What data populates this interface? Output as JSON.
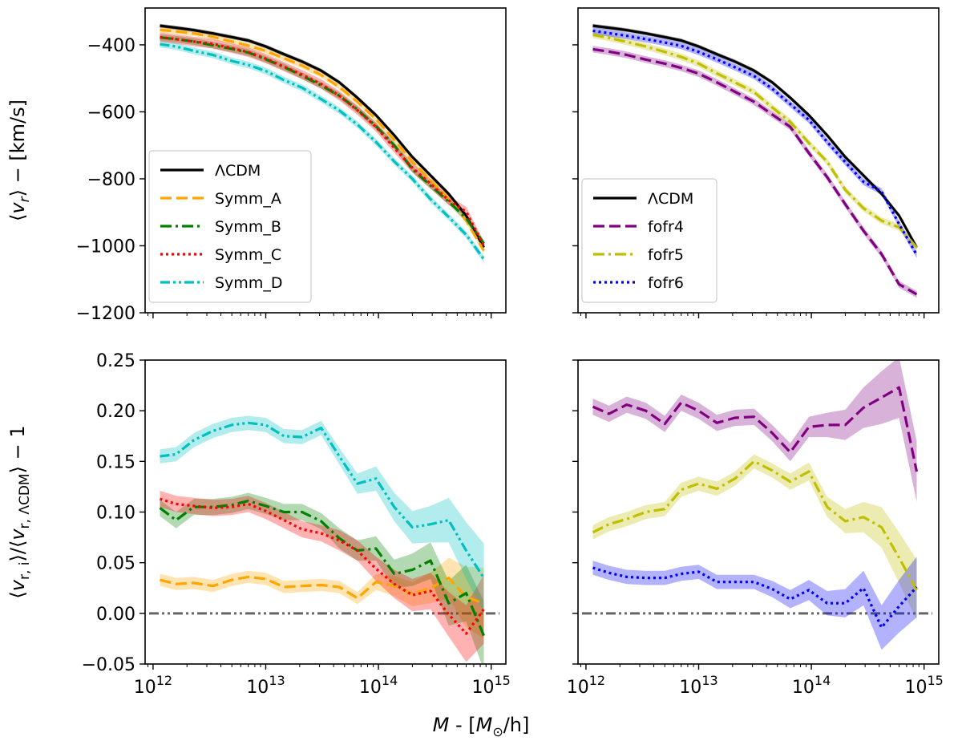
{
  "figure": {
    "xlabel": "M - [M☉/h]",
    "xlabel_parts": {
      "var": "M",
      "sep": " - [",
      "unit_main": "M",
      "unit_sub": "⊙",
      "unit_end": "/h]"
    }
  },
  "chart_data": [
    {
      "id": "top_left",
      "type": "line",
      "xscale": "log",
      "xlim": [
        850000000000.0,
        1350000000000000.0
      ],
      "ylim": [
        -1200,
        -290
      ],
      "xticks": [
        {
          "v": 1000000000000.0,
          "base": "10",
          "exp": "12"
        },
        {
          "v": 10000000000000.0,
          "base": "10",
          "exp": "13"
        },
        {
          "v": 100000000000000.0,
          "base": "10",
          "exp": "14"
        },
        {
          "v": 1000000000000000.0,
          "base": "10",
          "exp": "15"
        }
      ],
      "show_xticklabels": false,
      "yticks": [
        {
          "v": -400,
          "label": "−400"
        },
        {
          "v": -600,
          "label": "−600"
        },
        {
          "v": -800,
          "label": "−800"
        },
        {
          "v": -1000,
          "label": "−1000"
        },
        {
          "v": -1200,
          "label": "−1200"
        }
      ],
      "show_yticklabels": true,
      "ylabel": "⟨v_r⟩ − [km/s]",
      "legend": {
        "position": "lower-left"
      },
      "x": [
        1150000000000.0,
        1600000000000.0,
        2300000000000.0,
        3400000000000.0,
        5000000000000.0,
        7000000000000.0,
        10000000000000.0,
        14500000000000.0,
        21000000000000.0,
        31000000000000.0,
        45000000000000.0,
        65000000000000.0,
        95000000000000.0,
        138000000000000.0,
        200000000000000.0,
        290000000000000.0,
        420000000000000.0,
        600000000000000.0,
        860000000000000.0
      ],
      "series": [
        {
          "name": "ΛCDM",
          "color": "#000000",
          "dash": "solid",
          "values": [
            -343,
            -349,
            -356,
            -366,
            -377,
            -387,
            -405,
            -428,
            -450,
            -477,
            -512,
            -558,
            -610,
            -670,
            -735,
            -790,
            -845,
            -910,
            -1005
          ],
          "band": 6
        },
        {
          "name": "Symm_A",
          "color": "#ffa500",
          "dash": "dashed",
          "values": [
            -355,
            -360,
            -366,
            -376,
            -390,
            -402,
            -418,
            -440,
            -462,
            -490,
            -526,
            -570,
            -622,
            -684,
            -749,
            -804,
            -860,
            -925,
            -1015
          ],
          "band": 8
        },
        {
          "name": "Symm_B",
          "color": "#008000",
          "dash": "dashdot",
          "values": [
            -378,
            -383,
            -390,
            -401,
            -412,
            -423,
            -443,
            -466,
            -492,
            -521,
            -552,
            -593,
            -643,
            -700,
            -771,
            -820,
            -868,
            -918,
            -993
          ],
          "band": 10
        },
        {
          "name": "Symm_C",
          "color": "#ff0000",
          "dash": "dotted",
          "values": [
            -377,
            -383,
            -390,
            -397,
            -410,
            -422,
            -441,
            -465,
            -489,
            -517,
            -552,
            -595,
            -645,
            -708,
            -767,
            -815,
            -864,
            -898,
            -1000
          ],
          "band": 14
        },
        {
          "name": "Symm_D",
          "color": "#00bfbf",
          "dash": "dashdotdot",
          "values": [
            -398,
            -405,
            -418,
            -430,
            -448,
            -460,
            -478,
            -505,
            -528,
            -562,
            -596,
            -638,
            -690,
            -748,
            -800,
            -861,
            -914,
            -967,
            -1040
          ],
          "band": 10
        }
      ]
    },
    {
      "id": "top_right",
      "type": "line",
      "xscale": "log",
      "xlim": [
        850000000000.0,
        1350000000000000.0
      ],
      "ylim": [
        -1200,
        -290
      ],
      "xticks": [
        {
          "v": 1000000000000.0,
          "base": "10",
          "exp": "12"
        },
        {
          "v": 10000000000000.0,
          "base": "10",
          "exp": "13"
        },
        {
          "v": 100000000000000.0,
          "base": "10",
          "exp": "14"
        },
        {
          "v": 1000000000000000.0,
          "base": "10",
          "exp": "15"
        }
      ],
      "show_xticklabels": false,
      "yticks": [
        {
          "v": -400,
          "label": "−400"
        },
        {
          "v": -600,
          "label": "−600"
        },
        {
          "v": -800,
          "label": "−800"
        },
        {
          "v": -1000,
          "label": "−1000"
        },
        {
          "v": -1200,
          "label": "−1200"
        }
      ],
      "show_yticklabels": false,
      "ylabel": "",
      "legend": {
        "position": "lower-left"
      },
      "x": [
        1150000000000.0,
        1600000000000.0,
        2300000000000.0,
        3400000000000.0,
        5000000000000.0,
        7000000000000.0,
        10000000000000.0,
        14500000000000.0,
        21000000000000.0,
        31000000000000.0,
        45000000000000.0,
        65000000000000.0,
        95000000000000.0,
        138000000000000.0,
        200000000000000.0,
        290000000000000.0,
        420000000000000.0,
        600000000000000.0,
        860000000000000.0
      ],
      "series": [
        {
          "name": "ΛCDM",
          "color": "#000000",
          "dash": "solid",
          "values": [
            -343,
            -349,
            -356,
            -366,
            -377,
            -387,
            -405,
            -428,
            -450,
            -477,
            -512,
            -558,
            -610,
            -670,
            -735,
            -790,
            -845,
            -910,
            -1005
          ],
          "band": 6
        },
        {
          "name": "fofr4",
          "color": "#800080",
          "dash": "dashed",
          "values": [
            -413,
            -420,
            -430,
            -444,
            -456,
            -469,
            -486,
            -512,
            -540,
            -570,
            -608,
            -645,
            -723,
            -795,
            -876,
            -955,
            -1025,
            -1115,
            -1145
          ],
          "band": 10
        },
        {
          "name": "fofr5",
          "color": "#bfbf00",
          "dash": "dashdot",
          "values": [
            -370,
            -379,
            -391,
            -405,
            -421,
            -436,
            -456,
            -485,
            -512,
            -541,
            -587,
            -630,
            -693,
            -749,
            -833,
            -888,
            -925,
            -945,
            -1005
          ],
          "band": 10
        },
        {
          "name": "fofr6",
          "color": "#0000ff",
          "dash": "dotted",
          "values": [
            -358,
            -365,
            -373,
            -383,
            -393,
            -403,
            -421,
            -443,
            -467,
            -493,
            -531,
            -577,
            -624,
            -690,
            -750,
            -809,
            -838,
            -935,
            -1027
          ],
          "band": 10
        }
      ]
    },
    {
      "id": "bottom_left",
      "type": "line",
      "xscale": "log",
      "xlim": [
        850000000000.0,
        1350000000000000.0
      ],
      "ylim": [
        -0.05,
        0.25
      ],
      "xticks": [
        {
          "v": 1000000000000.0,
          "base": "10",
          "exp": "12"
        },
        {
          "v": 10000000000000.0,
          "base": "10",
          "exp": "13"
        },
        {
          "v": 100000000000000.0,
          "base": "10",
          "exp": "14"
        },
        {
          "v": 1000000000000000.0,
          "base": "10",
          "exp": "15"
        }
      ],
      "show_xticklabels": true,
      "yticks": [
        {
          "v": -0.05,
          "label": "−0.05"
        },
        {
          "v": 0,
          "label": "0.00"
        },
        {
          "v": 0.05,
          "label": "0.05"
        },
        {
          "v": 0.1,
          "label": "0.10"
        },
        {
          "v": 0.15,
          "label": "0.15"
        },
        {
          "v": 0.2,
          "label": "0.20"
        },
        {
          "v": 0.25,
          "label": "0.25"
        }
      ],
      "show_yticklabels": true,
      "ylabel": "⟨v_{r,i}⟩/⟨v_{r,ΛCDM}⟩ − 1",
      "reference": {
        "y": 0,
        "color": "#666666"
      },
      "x": [
        1150000000000.0,
        1600000000000.0,
        2300000000000.0,
        3400000000000.0,
        5000000000000.0,
        7000000000000.0,
        10000000000000.0,
        14500000000000.0,
        21000000000000.0,
        31000000000000.0,
        45000000000000.0,
        65000000000000.0,
        95000000000000.0,
        138000000000000.0,
        200000000000000.0,
        290000000000000.0,
        420000000000000.0,
        600000000000000.0,
        860000000000000.0
      ],
      "series": [
        {
          "name": "Symm_A",
          "color": "#ffa500",
          "dash": "dashed",
          "values": [
            0.033,
            0.029,
            0.03,
            0.027,
            0.033,
            0.036,
            0.034,
            0.026,
            0.027,
            0.028,
            0.026,
            0.015,
            0.031,
            0.027,
            0.019,
            0.025,
            0.035,
            0.016,
            0.01
          ],
          "band": [
            0.006,
            0.006,
            0.006,
            0.006,
            0.006,
            0.006,
            0.006,
            0.006,
            0.006,
            0.006,
            0.006,
            0.006,
            0.008,
            0.01,
            0.012,
            0.015,
            0.02,
            0.03,
            0.035
          ]
        },
        {
          "name": "Symm_B",
          "color": "#008000",
          "dash": "dashdot",
          "values": [
            0.104,
            0.092,
            0.105,
            0.105,
            0.107,
            0.111,
            0.106,
            0.1,
            0.1,
            0.091,
            0.074,
            0.062,
            0.064,
            0.039,
            0.043,
            0.052,
            0.01,
            0.02,
            -0.022
          ],
          "band": [
            0.008,
            0.008,
            0.008,
            0.008,
            0.008,
            0.008,
            0.008,
            0.008,
            0.008,
            0.008,
            0.01,
            0.01,
            0.012,
            0.014,
            0.016,
            0.018,
            0.022,
            0.028,
            0.034
          ]
        },
        {
          "name": "Symm_C",
          "color": "#ff0000",
          "dash": "dotted",
          "values": [
            0.113,
            0.108,
            0.106,
            0.104,
            0.105,
            0.108,
            0.101,
            0.092,
            0.083,
            0.079,
            0.072,
            0.062,
            0.044,
            0.029,
            0.018,
            0.022,
            -0.001,
            -0.02,
            0.004
          ],
          "band": [
            0.008,
            0.008,
            0.008,
            0.008,
            0.008,
            0.008,
            0.008,
            0.008,
            0.008,
            0.008,
            0.01,
            0.01,
            0.012,
            0.014,
            0.016,
            0.018,
            0.022,
            0.028,
            0.034
          ]
        },
        {
          "name": "Symm_D",
          "color": "#00bfbf",
          "dash": "dashdotdot",
          "values": [
            0.155,
            0.157,
            0.171,
            0.18,
            0.186,
            0.188,
            0.186,
            0.175,
            0.174,
            0.183,
            0.155,
            0.128,
            0.133,
            0.105,
            0.085,
            0.088,
            0.092,
            0.062,
            0.035
          ],
          "band": [
            0.007,
            0.007,
            0.007,
            0.007,
            0.007,
            0.007,
            0.007,
            0.007,
            0.007,
            0.007,
            0.008,
            0.01,
            0.012,
            0.014,
            0.016,
            0.018,
            0.022,
            0.028,
            0.034
          ]
        }
      ]
    },
    {
      "id": "bottom_right",
      "type": "line",
      "xscale": "log",
      "xlim": [
        850000000000.0,
        1350000000000000.0
      ],
      "ylim": [
        -0.05,
        0.25
      ],
      "xticks": [
        {
          "v": 1000000000000.0,
          "base": "10",
          "exp": "12"
        },
        {
          "v": 10000000000000.0,
          "base": "10",
          "exp": "13"
        },
        {
          "v": 100000000000000.0,
          "base": "10",
          "exp": "14"
        },
        {
          "v": 1000000000000000.0,
          "base": "10",
          "exp": "15"
        }
      ],
      "show_xticklabels": true,
      "yticks": [
        {
          "v": -0.05,
          "label": "−0.05"
        },
        {
          "v": 0,
          "label": "0.00"
        },
        {
          "v": 0.05,
          "label": "0.05"
        },
        {
          "v": 0.1,
          "label": "0.10"
        },
        {
          "v": 0.15,
          "label": "0.15"
        },
        {
          "v": 0.2,
          "label": "0.20"
        },
        {
          "v": 0.25,
          "label": "0.25"
        }
      ],
      "show_yticklabels": false,
      "ylabel": "",
      "reference": {
        "y": 0,
        "color": "#666666"
      },
      "x": [
        1150000000000.0,
        1600000000000.0,
        2300000000000.0,
        3400000000000.0,
        5000000000000.0,
        7000000000000.0,
        10000000000000.0,
        14500000000000.0,
        21000000000000.0,
        31000000000000.0,
        45000000000000.0,
        65000000000000.0,
        95000000000000.0,
        138000000000000.0,
        200000000000000.0,
        290000000000000.0,
        420000000000000.0,
        600000000000000.0,
        860000000000000.0
      ],
      "series": [
        {
          "name": "fofr4",
          "color": "#800080",
          "dash": "dashed",
          "values": [
            0.204,
            0.197,
            0.206,
            0.2,
            0.187,
            0.208,
            0.2,
            0.188,
            0.193,
            0.194,
            0.178,
            0.159,
            0.184,
            0.186,
            0.186,
            0.203,
            0.213,
            0.223,
            0.14
          ],
          "band": [
            0.008,
            0.008,
            0.008,
            0.008,
            0.008,
            0.008,
            0.008,
            0.008,
            0.008,
            0.008,
            0.008,
            0.009,
            0.01,
            0.012,
            0.015,
            0.02,
            0.026,
            0.03,
            0.03
          ]
        },
        {
          "name": "fofr5",
          "color": "#bfbf00",
          "dash": "dashdot",
          "values": [
            0.08,
            0.088,
            0.093,
            0.1,
            0.103,
            0.122,
            0.128,
            0.123,
            0.133,
            0.15,
            0.141,
            0.13,
            0.14,
            0.105,
            0.091,
            0.095,
            0.085,
            0.055,
            0.023
          ],
          "band": [
            0.007,
            0.007,
            0.007,
            0.007,
            0.007,
            0.007,
            0.007,
            0.007,
            0.007,
            0.007,
            0.007,
            0.008,
            0.009,
            0.01,
            0.012,
            0.015,
            0.02,
            0.025,
            0.03
          ]
        },
        {
          "name": "fofr6",
          "color": "#0000ff",
          "dash": "dotted",
          "values": [
            0.045,
            0.04,
            0.036,
            0.035,
            0.035,
            0.039,
            0.041,
            0.031,
            0.031,
            0.031,
            0.024,
            0.014,
            0.023,
            0.01,
            0.01,
            0.025,
            -0.014,
            0.007,
            0.026
          ],
          "band": [
            0.007,
            0.007,
            0.007,
            0.007,
            0.007,
            0.007,
            0.007,
            0.007,
            0.007,
            0.007,
            0.008,
            0.009,
            0.01,
            0.012,
            0.014,
            0.017,
            0.022,
            0.026,
            0.03
          ]
        }
      ]
    }
  ]
}
